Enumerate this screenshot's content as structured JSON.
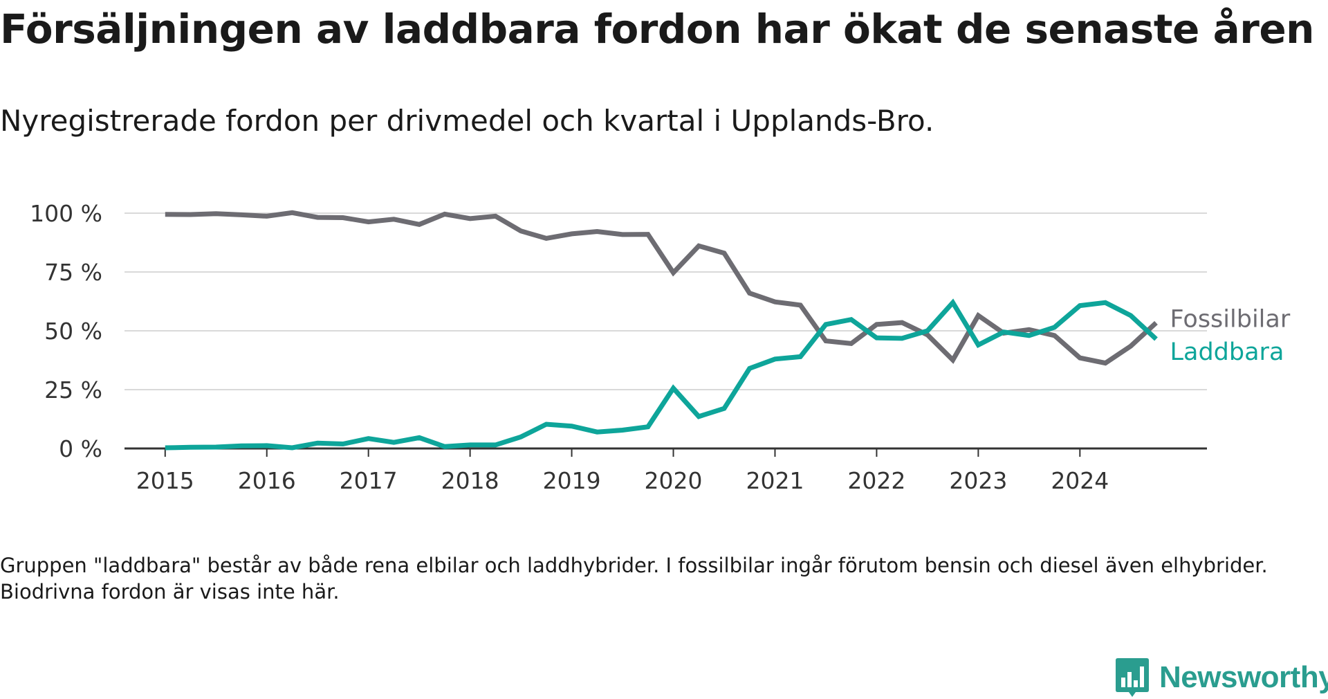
{
  "title": "Försäljningen av laddbara fordon har ökat de senaste åren",
  "subtitle": "Nyregistrerade fordon per drivmedel och kvartal i Upplands-Bro.",
  "footnote": "Gruppen \"laddbara\" består av både rena elbilar och laddhybrider. I fossilbilar ingår förutom bensin och diesel även elhybrider. Biodrivna fordon är visas inte här.",
  "brand": {
    "name": "Newsworthy",
    "icon": "newsworthy-logo-icon"
  },
  "colors": {
    "fossil": "#6d6c72",
    "laddbara": "#0ea59a",
    "grid": "#d9d9d9",
    "axis": "#333333"
  },
  "chart_data": {
    "type": "line",
    "title": "Försäljningen av laddbara fordon har ökat de senaste åren",
    "subtitle": "Nyregistrerade fordon per drivmedel och kvartal i Upplands-Bro.",
    "xlabel": "",
    "ylabel": "",
    "x_start": 2015.0,
    "x_step": 0.25,
    "xlim": [
      2014.6,
      2025.25
    ],
    "ylim": [
      0,
      100
    ],
    "x_ticks": [
      2015,
      2016,
      2017,
      2018,
      2019,
      2020,
      2021,
      2022,
      2023,
      2024
    ],
    "x_tick_labels": [
      "2015",
      "2016",
      "2017",
      "2018",
      "2019",
      "2020",
      "2021",
      "2022",
      "2023",
      "2024"
    ],
    "y_ticks": [
      0,
      25,
      50,
      75,
      100
    ],
    "y_tick_labels": [
      "0 %",
      "25 %",
      "50 %",
      "75 %",
      "100 %"
    ],
    "grid": true,
    "legend": "direct labels at line ends (right)",
    "series": [
      {
        "name": "Fossilbilar",
        "color_key": "fossil",
        "values": [
          99.5,
          99.4,
          99.8,
          99.3,
          98.7,
          100.2,
          98.2,
          98.1,
          96.3,
          97.4,
          95.2,
          99.6,
          97.7,
          98.7,
          92.4,
          89.3,
          91.2,
          92.2,
          90.9,
          91.0,
          74.7,
          86.1,
          83.0,
          66.0,
          62.3,
          60.9,
          45.7,
          44.6,
          52.7,
          53.5,
          48.3,
          37.6,
          56.5,
          49.0,
          50.5,
          48.0,
          38.5,
          36.3,
          43.5,
          53.4
        ]
      },
      {
        "name": "Laddbara",
        "color_key": "laddbara",
        "values": [
          0.3,
          0.5,
          0.6,
          1.1,
          1.2,
          0.3,
          2.3,
          1.9,
          4.2,
          2.6,
          4.6,
          0.8,
          1.5,
          1.5,
          4.9,
          10.3,
          9.5,
          7.0,
          7.8,
          9.2,
          25.6,
          13.6,
          17.0,
          34.0,
          38.0,
          39.0,
          52.7,
          54.8,
          47.0,
          46.8,
          50.0,
          62.0,
          44.0,
          49.5,
          48.0,
          51.5,
          60.7,
          62.0,
          56.5,
          46.5
        ]
      }
    ]
  }
}
